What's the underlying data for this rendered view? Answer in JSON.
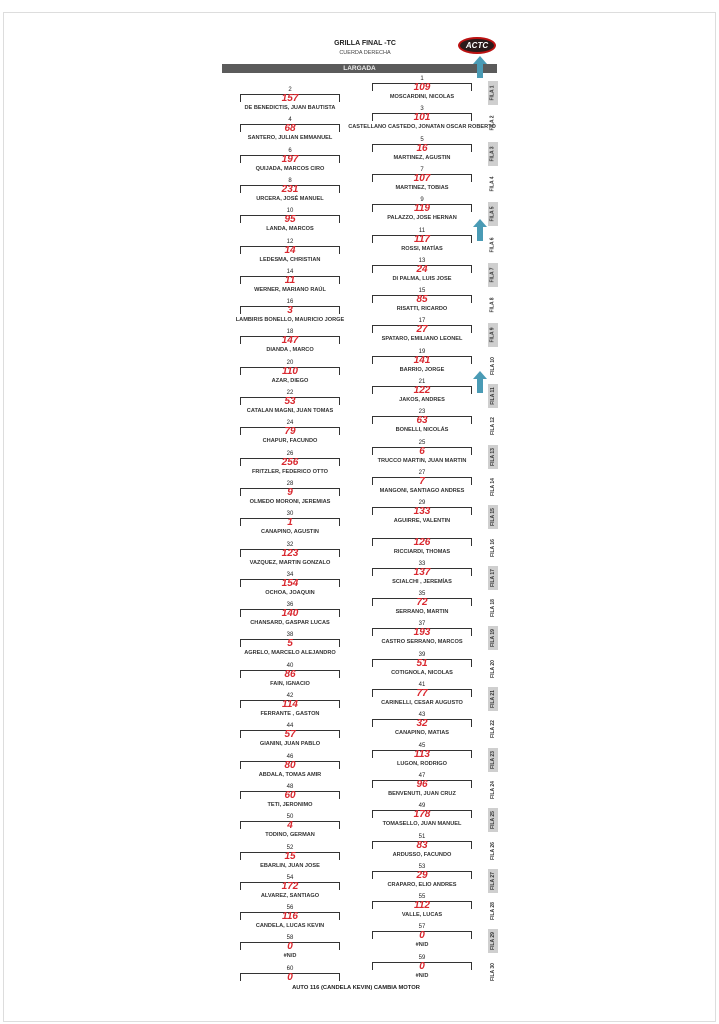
{
  "header": {
    "title": "GRILLA FINAL -TC",
    "subtitle": "CUERDA DERECHA",
    "logo_text": "ACTC",
    "bar_label": "LARGADA"
  },
  "colors": {
    "car_number": "#d9282f",
    "bar": "#5b5b5b",
    "arrow": "#4a9bb5",
    "logo": "#b11111"
  },
  "left": [
    {
      "pos": "2",
      "car": "157",
      "name": "DE BENEDICTIS, JUAN BAUTISTA"
    },
    {
      "pos": "4",
      "car": "68",
      "name": "SANTERO, JULIAN EMMANUEL"
    },
    {
      "pos": "6",
      "car": "197",
      "name": "QUIJADA, MARCOS CIRO"
    },
    {
      "pos": "8",
      "car": "231",
      "name": "URCERA, JOSÉ MANUEL"
    },
    {
      "pos": "10",
      "car": "95",
      "name": "LANDA, MARCOS"
    },
    {
      "pos": "12",
      "car": "14",
      "name": "LEDESMA, CHRISTIAN"
    },
    {
      "pos": "14",
      "car": "11",
      "name": "WERNER, MARIANO RAÚL"
    },
    {
      "pos": "16",
      "car": "3",
      "name": "LAMBIRIS BONELLO, MAURICIO JORGE"
    },
    {
      "pos": "18",
      "car": "147",
      "name": "DIANDA , MARCO"
    },
    {
      "pos": "20",
      "car": "110",
      "name": "AZAR, DIEGO"
    },
    {
      "pos": "22",
      "car": "53",
      "name": "CATALAN MAGNI, JUAN TOMAS"
    },
    {
      "pos": "24",
      "car": "79",
      "name": "CHAPUR, FACUNDO"
    },
    {
      "pos": "26",
      "car": "256",
      "name": "FRITZLER, FEDERICO OTTO"
    },
    {
      "pos": "28",
      "car": "9",
      "name": "OLMEDO MORONI, JEREMIAS"
    },
    {
      "pos": "30",
      "car": "1",
      "name": "CANAPINO, AGUSTIN"
    },
    {
      "pos": "32",
      "car": "123",
      "name": "VAZQUEZ, MARTIN GONZALO"
    },
    {
      "pos": "34",
      "car": "154",
      "name": "OCHOA, JOAQUIN"
    },
    {
      "pos": "36",
      "car": "140",
      "name": "CHANSARD, GASPAR LUCAS"
    },
    {
      "pos": "38",
      "car": "5",
      "name": "AGRELO, MARCELO ALEJANDRO"
    },
    {
      "pos": "40",
      "car": "86",
      "name": "FAIN, IGNACIO"
    },
    {
      "pos": "42",
      "car": "114",
      "name": "FERRANTE , GASTON"
    },
    {
      "pos": "44",
      "car": "57",
      "name": "GIANINI, JUAN PABLO"
    },
    {
      "pos": "46",
      "car": "80",
      "name": "ABDALA, TOMAS AMIR"
    },
    {
      "pos": "48",
      "car": "60",
      "name": "TETI, JERONIMO"
    },
    {
      "pos": "50",
      "car": "4",
      "name": "TODINO, GERMAN"
    },
    {
      "pos": "52",
      "car": "15",
      "name": "EBARLIN, JUAN JOSE"
    },
    {
      "pos": "54",
      "car": "172",
      "name": "ALVAREZ, SANTIAGO"
    },
    {
      "pos": "56",
      "car": "116",
      "name": "CANDELA, LUCAS KEVIN"
    },
    {
      "pos": "58",
      "car": "0",
      "name": "#N/D"
    },
    {
      "pos": "60",
      "car": "0",
      "name": ""
    }
  ],
  "right": [
    {
      "pos": "1",
      "car": "109",
      "name": "MOSCARDINI, NICOLAS"
    },
    {
      "pos": "3",
      "car": "101",
      "name": "CASTELLANO CASTEDO, JONATAN OSCAR ROBERTO"
    },
    {
      "pos": "5",
      "car": "16",
      "name": "MARTINEZ, AGUSTIN"
    },
    {
      "pos": "7",
      "car": "107",
      "name": "MARTINEZ, TOBIAS"
    },
    {
      "pos": "9",
      "car": "119",
      "name": "PALAZZO, JOSE HERNAN"
    },
    {
      "pos": "11",
      "car": "117",
      "name": "ROSSI, MATÍAS"
    },
    {
      "pos": "13",
      "car": "24",
      "name": "DI PALMA, LUIS JOSE"
    },
    {
      "pos": "15",
      "car": "85",
      "name": "RISATTI, RICARDO"
    },
    {
      "pos": "17",
      "car": "27",
      "name": "SPATARO, EMILIANO LEONEL"
    },
    {
      "pos": "19",
      "car": "141",
      "name": "BARRIO, JORGE"
    },
    {
      "pos": "21",
      "car": "122",
      "name": "JAKOS, ANDRES"
    },
    {
      "pos": "23",
      "car": "63",
      "name": "BONELLI, NICOLÁS"
    },
    {
      "pos": "25",
      "car": "6",
      "name": "TRUCCO MARTIN, JUAN MARTIN"
    },
    {
      "pos": "27",
      "car": "7",
      "name": "MANGONI, SANTIAGO ANDRES"
    },
    {
      "pos": "29",
      "car": "133",
      "name": "AGUIRRE, VALENTIN"
    },
    {
      "pos": "",
      "car": "126",
      "name": "RICCIARDI, THOMAS"
    },
    {
      "pos": "33",
      "car": "137",
      "name": "SCIALCHI , JEREMÍAS"
    },
    {
      "pos": "35",
      "car": "72",
      "name": "SERRANO, MARTIN"
    },
    {
      "pos": "37",
      "car": "193",
      "name": "CASTRO SERRANO, MARCOS"
    },
    {
      "pos": "39",
      "car": "51",
      "name": "COTIGNOLA, NICOLAS"
    },
    {
      "pos": "41",
      "car": "77",
      "name": "CARINELLI, CESAR AUGUSTO"
    },
    {
      "pos": "43",
      "car": "32",
      "name": "CANAPINO, MATIAS"
    },
    {
      "pos": "45",
      "car": "113",
      "name": "LUGON, RODRIGO"
    },
    {
      "pos": "47",
      "car": "96",
      "name": "BENVENUTI, JUAN CRUZ"
    },
    {
      "pos": "49",
      "car": "178",
      "name": "TOMASELLO, JUAN MANUEL"
    },
    {
      "pos": "51",
      "car": "83",
      "name": "ARDUSSO, FACUNDO"
    },
    {
      "pos": "53",
      "car": "29",
      "name": "CRAPARO, ELIO ANDRES"
    },
    {
      "pos": "55",
      "car": "112",
      "name": "VALLE, LUCAS"
    },
    {
      "pos": "57",
      "car": "0",
      "name": "#N/D"
    },
    {
      "pos": "59",
      "car": "0",
      "name": "#N/D"
    }
  ],
  "filas": [
    "FILA 1",
    "FILA 2",
    "FILA 3",
    "FILA 4",
    "FILA 5",
    "FILA 6",
    "FILA 7",
    "FILA 8",
    "FILA 9",
    "FILA 10",
    "FILA 11",
    "FILA 12",
    "FILA 13",
    "FILA 14",
    "FILA 15",
    "FILA 16",
    "FILA 17",
    "FILA 18",
    "FILA 19",
    "FILA 20",
    "FILA 21",
    "FILA 22",
    "FILA 23",
    "FILA 24",
    "FILA 25",
    "FILA 26",
    "FILA 27",
    "FILA 28",
    "FILA 29",
    "FILA 30"
  ],
  "footer": "AUTO 116 (CANDELA KEVIN) CAMBIA MOTOR"
}
